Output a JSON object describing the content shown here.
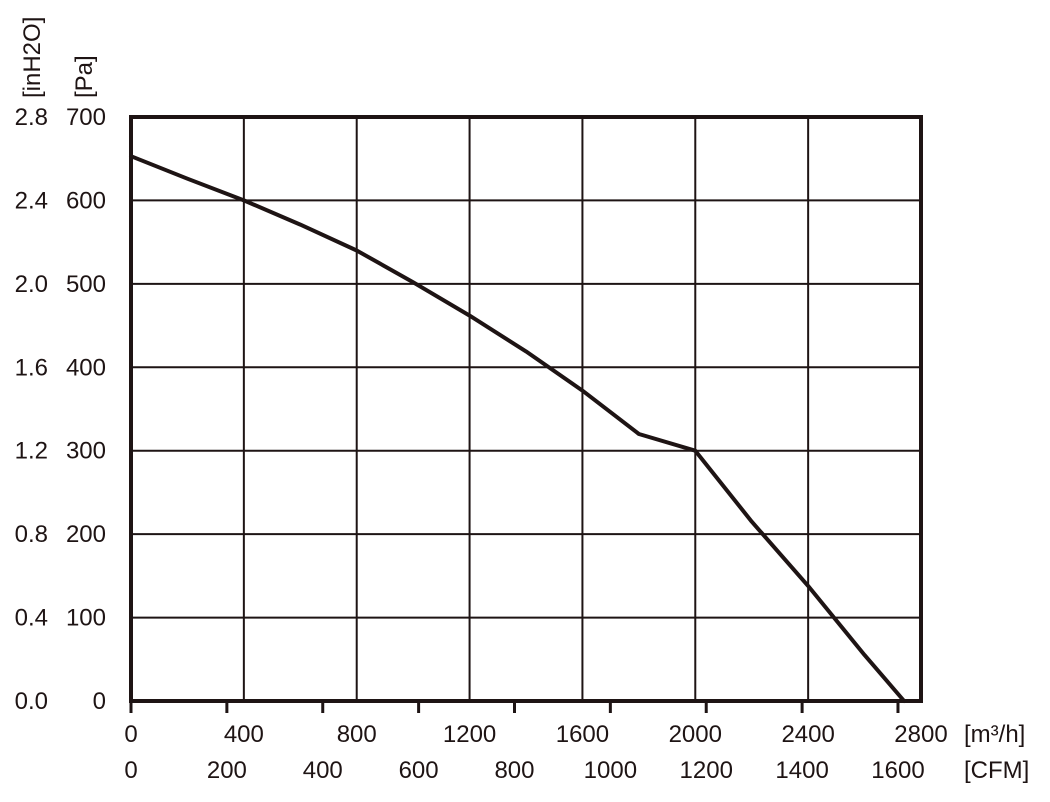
{
  "chart_data": {
    "type": "line",
    "series": [
      {
        "x": [
          0,
          200,
          400,
          600,
          800,
          1000,
          1200,
          1400,
          1600,
          1800,
          2000,
          2200,
          2400,
          2600,
          2740
        ],
        "values": [
          653,
          626,
          600,
          571,
          540,
          502,
          462,
          419,
          372,
          320,
          300,
          215,
          138,
          55,
          0
        ]
      }
    ],
    "x_axes": [
      {
        "unit_label": "[m³/h]",
        "ticks": [
          "0",
          "400",
          "800",
          "1200",
          "1600",
          "2000",
          "2400",
          "2800"
        ],
        "tick_values": [
          0,
          400,
          800,
          1200,
          1600,
          2000,
          2400,
          2800
        ],
        "range": [
          0,
          2800
        ]
      },
      {
        "unit_label": "[CFM]",
        "ticks": [
          "0",
          "200",
          "400",
          "600",
          "800",
          "1000",
          "1200",
          "1400",
          "1600"
        ],
        "tick_values_m3h": [
          0,
          339.8,
          679.6,
          1019.4,
          1359.2,
          1699.0,
          2038.8,
          2378.6,
          2718.4
        ],
        "range": [
          0,
          1648
        ]
      }
    ],
    "y_axes": [
      {
        "unit_label": "[Pa]",
        "ticks": [
          "0",
          "100",
          "200",
          "300",
          "400",
          "500",
          "600",
          "700"
        ],
        "tick_values": [
          0,
          100,
          200,
          300,
          400,
          500,
          600,
          700
        ],
        "range": [
          0,
          700
        ]
      },
      {
        "unit_label": "[inH2O]",
        "ticks": [
          "0.0",
          "0.4",
          "0.8",
          "1.2",
          "1.6",
          "2.0",
          "2.4",
          "2.8"
        ],
        "range": [
          0,
          2.8
        ]
      }
    ],
    "grid": true,
    "colors": {
      "line": "#1e1414",
      "grid": "#1e1414",
      "background": "#ffffff"
    }
  }
}
